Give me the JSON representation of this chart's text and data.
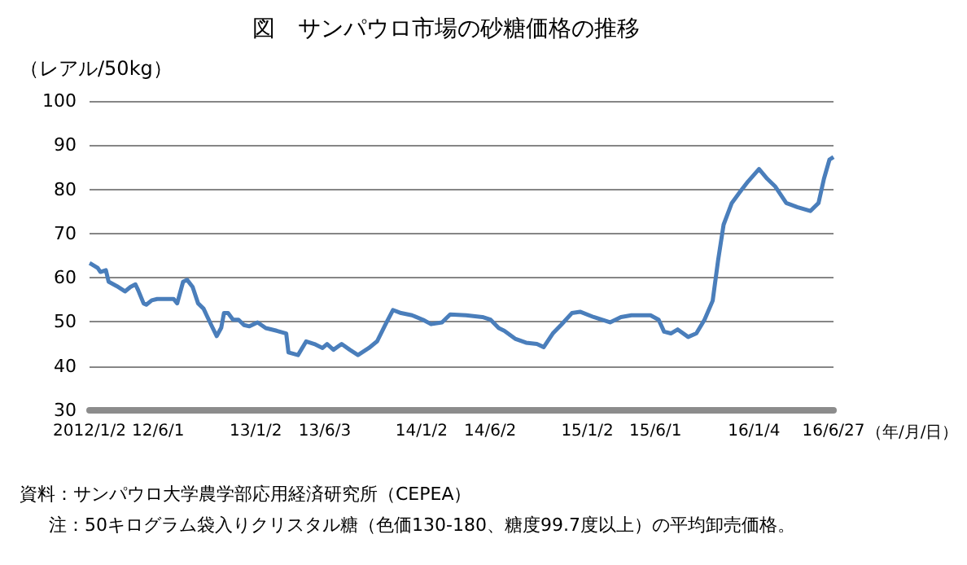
{
  "chart_data": {
    "type": "line",
    "title": "図　サンパウロ市場の砂糖価格の推移",
    "ylabel": "（レアル/50kg）",
    "xlabel": "（年/月/日）",
    "annotations": [
      "資料：サンパウロ大学農学部応用経済研究所（CEPEA）",
      "注：50キログラム袋入りクリスタル糖（色価130-180、糖度99.7度以上）の平均卸売価格。"
    ],
    "x": [
      "2012-01-02",
      "2012-01-06",
      "2012-01-20",
      "2012-01-26",
      "2012-02-07",
      "2012-02-13",
      "2012-03-02",
      "2012-03-20",
      "2012-04-01",
      "2012-04-12",
      "2012-04-18",
      "2012-04-30",
      "2012-05-06",
      "2012-05-18",
      "2012-05-30",
      "2012-07-05",
      "2012-07-13",
      "2012-07-26",
      "2012-08-04",
      "2012-08-16",
      "2012-08-28",
      "2012-09-09",
      "2012-09-26",
      "2012-10-08",
      "2012-10-18",
      "2012-10-24",
      "2012-11-02",
      "2012-11-13",
      "2012-11-25",
      "2012-12-07",
      "2012-12-19",
      "2013-01-06",
      "2013-01-24",
      "2013-02-17",
      "2013-03-10",
      "2013-03-15",
      "2013-04-05",
      "2013-04-23",
      "2013-05-11",
      "2013-05-29",
      "2013-06-08",
      "2013-06-22",
      "2013-07-10",
      "2013-07-28",
      "2013-08-15",
      "2013-09-08",
      "2013-09-26",
      "2013-10-14",
      "2013-10-31",
      "2013-11-18",
      "2013-12-12",
      "2014-01-05",
      "2014-01-23",
      "2014-02-16",
      "2014-03-06",
      "2014-04-10",
      "2014-05-16",
      "2014-06-03",
      "2014-06-21",
      "2014-07-03",
      "2014-07-27",
      "2014-08-20",
      "2014-09-13",
      "2014-09-28",
      "2014-10-18",
      "2014-11-05",
      "2014-11-29",
      "2014-12-17",
      "2015-01-16",
      "2015-02-21",
      "2015-03-17",
      "2015-04-09",
      "2015-05-21",
      "2015-06-08",
      "2015-06-20",
      "2015-07-05",
      "2015-07-20",
      "2015-08-12",
      "2015-08-30",
      "2015-09-17",
      "2015-10-05",
      "2015-10-17",
      "2015-10-29",
      "2015-11-16",
      "2015-12-04",
      "2015-12-22",
      "2016-01-15",
      "2016-02-02",
      "2016-02-20",
      "2016-03-15",
      "2016-04-08",
      "2016-05-07",
      "2016-05-25",
      "2016-06-06",
      "2016-06-18",
      "2016-06-27"
    ],
    "series": [
      {
        "color": "#4a7ebb",
        "values": [
          63.3,
          63.1,
          62.2,
          61.3,
          61.7,
          59.1,
          58.1,
          56.9,
          57.9,
          58.5,
          57.2,
          54.2,
          53.9,
          54.9,
          55.2,
          55.2,
          54.2,
          59.1,
          59.5,
          57.9,
          54.2,
          53.0,
          49.3,
          46.8,
          48.7,
          52.0,
          52.0,
          50.5,
          50.5,
          49.3,
          49.0,
          49.9,
          48.6,
          48.0,
          47.4,
          43.1,
          42.5,
          45.6,
          45.0,
          44.1,
          45.0,
          43.7,
          45.0,
          43.7,
          42.5,
          44.1,
          45.6,
          49.3,
          52.7,
          52.0,
          51.5,
          50.5,
          49.5,
          49.9,
          51.7,
          51.5,
          51.1,
          50.5,
          48.6,
          48.0,
          46.2,
          45.3,
          45.0,
          44.3,
          47.4,
          49.3,
          52.0,
          52.3,
          51.1,
          49.9,
          51.1,
          51.5,
          51.5,
          50.5,
          47.8,
          47.4,
          48.3,
          46.6,
          47.4,
          50.5,
          54.8,
          64.0,
          72.0,
          76.9,
          79.4,
          81.8,
          84.6,
          82.4,
          80.6,
          76.9,
          76.0,
          75.1,
          76.9,
          82.4,
          86.7,
          87.3
        ]
      }
    ],
    "xlim": [
      "2012-01-02",
      "2016-06-27"
    ],
    "xticks": [
      {
        "value": "2012-01-02",
        "label": "2012/1/2"
      },
      {
        "value": "2012-06-01",
        "label": "12/6/1"
      },
      {
        "value": "2013-01-02",
        "label": "13/1/2"
      },
      {
        "value": "2013-06-03",
        "label": "13/6/3"
      },
      {
        "value": "2014-01-02",
        "label": "14/1/2"
      },
      {
        "value": "2014-06-02",
        "label": "14/6/2"
      },
      {
        "value": "2015-01-02",
        "label": "15/1/2"
      },
      {
        "value": "2015-06-01",
        "label": "15/6/1"
      },
      {
        "value": "2016-01-04",
        "label": "16/1/4"
      },
      {
        "value": "2016-06-27",
        "label": "16/6/27"
      }
    ],
    "ylim": [
      30,
      100
    ],
    "yticks": [
      30,
      40,
      50,
      60,
      70,
      80,
      90,
      100
    ],
    "grid": "y",
    "marker": "none",
    "line_style": "solid"
  }
}
